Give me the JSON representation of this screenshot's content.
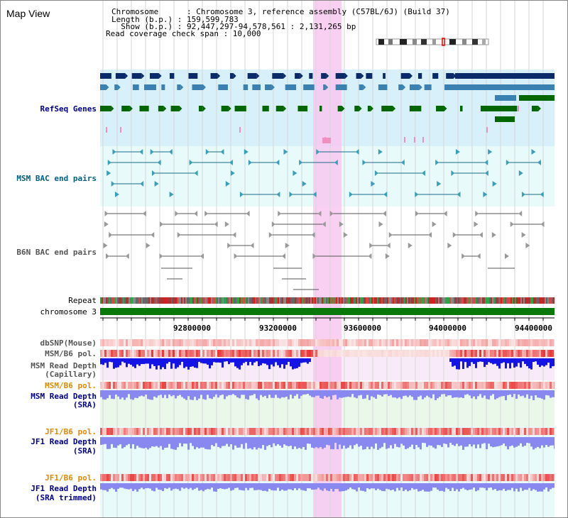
{
  "title": "Map View",
  "header": {
    "chromosome_line": "Chromosome      : Chromosome 3, reference assembly (C57BL/6J) (Build 37)",
    "length_line": "Length (b.p.) : 159,599,783",
    "show_line": "  Show (b.p.) : 92,447,297-94,578,561 : 2,131,265 bp",
    "coverage_line": "Read coverage check span : 10,000"
  },
  "tracks": {
    "refseq": "RefSeq Genes",
    "msm_bac": "MSM BAC end pairs",
    "b6n_bac": "B6N BAC end pairs",
    "repeat": "Repeat",
    "chromosome": "chromosome 3",
    "dbsnp": "dbSNP(Mouse)",
    "msm_pol1": "MSM/B6 pol.",
    "msm_depth_cap_1": "MSM Read Depth",
    "msm_depth_cap_2": "(Capillary)",
    "msm_pol2": "MSM/B6 pol.",
    "msm_depth_sra_1": "MSM Read Depth",
    "msm_depth_sra_2": "(SRA)",
    "jf1_pol1": "JF1/B6 pol.",
    "jf1_depth_sra_1": "JF1 Read Depth",
    "jf1_depth_sra_2": "(SRA)",
    "jf1_pol2": "JF1/B6 pol.",
    "jf1_depth_trim_1": "JF1 Read Depth",
    "jf1_depth_trim_2": "(SRA trimmed)"
  },
  "axis": {
    "ticks": [
      "92800000",
      "93200000",
      "93600000",
      "94000000",
      "94400000"
    ]
  },
  "colors": {
    "track_label": "#00008b",
    "teal_label": "#006080",
    "gray_label": "#555555",
    "orange_label": "#e08a00",
    "refseq_bg": "#d8f0fa",
    "bac_bg": "#e8fafa",
    "highlight": "#f8c8f0",
    "gene_dark": "#0a2a6a",
    "gene_mid": "#3a80b0",
    "gene_green": "#006600",
    "depth_blue": "#1414e6",
    "depth_light": "#8888f0",
    "chrom_green": "#0a780a"
  }
}
